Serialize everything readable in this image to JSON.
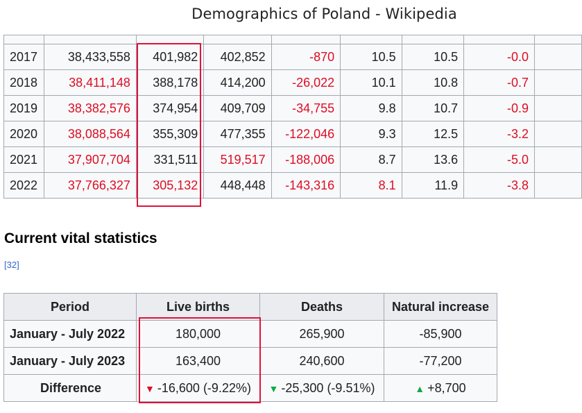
{
  "window": {
    "title": "Demographics of Poland - Wikipedia"
  },
  "yearly_table": {
    "rows": [
      {
        "year": "2017",
        "population": "38,433,558",
        "births": "401,982",
        "deaths": "402,852",
        "natural_change": "-870",
        "crude_birth_rate": "10.5",
        "crude_death_rate": "10.5",
        "natural_change_rate": "-0.0"
      },
      {
        "year": "2018",
        "population": "38,411,148",
        "births": "388,178",
        "deaths": "414,200",
        "natural_change": "-26,022",
        "crude_birth_rate": "10.1",
        "crude_death_rate": "10.8",
        "natural_change_rate": "-0.7"
      },
      {
        "year": "2019",
        "population": "38,382,576",
        "births": "374,954",
        "deaths": "409,709",
        "natural_change": "-34,755",
        "crude_birth_rate": "9.8",
        "crude_death_rate": "10.7",
        "natural_change_rate": "-0.9"
      },
      {
        "year": "2020",
        "population": "38,088,564",
        "births": "355,309",
        "deaths": "477,355",
        "natural_change": "-122,046",
        "crude_birth_rate": "9.3",
        "crude_death_rate": "12.5",
        "natural_change_rate": "-3.2"
      },
      {
        "year": "2021",
        "population": "37,907,704",
        "births": "331,511",
        "deaths": "519,517",
        "natural_change": "-188,006",
        "crude_birth_rate": "8.7",
        "crude_death_rate": "13.6",
        "natural_change_rate": "-5.0"
      },
      {
        "year": "2022",
        "population": "37,766,327",
        "births": "305,132",
        "deaths": "448,448",
        "natural_change": "-143,316",
        "crude_birth_rate": "8.1",
        "crude_death_rate": "11.9",
        "natural_change_rate": "-3.8"
      }
    ]
  },
  "section": {
    "heading": "Current vital statistics",
    "reference": "[32]"
  },
  "vital_table": {
    "headers": [
      "Period",
      "Live births",
      "Deaths",
      "Natural increase"
    ],
    "rows": [
      {
        "period": "January - July 2022",
        "births": "180,000",
        "deaths": "265,900",
        "natural_increase": "-85,900"
      },
      {
        "period": "January - July 2023",
        "births": "163,400",
        "deaths": "240,600",
        "natural_increase": "-77,200"
      }
    ],
    "difference": {
      "label": "Difference",
      "births": "-16,600 (-9.22%)",
      "deaths": "-25,300 (-9.51%)",
      "natural_increase": "+8,700"
    }
  },
  "colors": {
    "negative": "#dd0d24",
    "highlight": "#e0123b",
    "up_green": "#14a84a",
    "link": "#3366cc"
  },
  "icons": {
    "births_diff": "triangle-down-red",
    "deaths_diff": "triangle-down-green",
    "increase_diff": "triangle-up-green"
  }
}
